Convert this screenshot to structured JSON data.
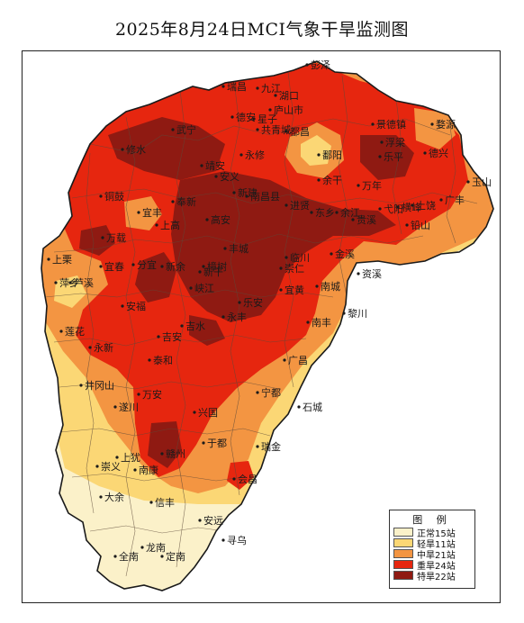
{
  "title": "2025年8月24日MCI气象干旱监测图",
  "colors": {
    "normal": "#fbf1c9",
    "light": "#fbd775",
    "moderate": "#f39542",
    "severe": "#e6260f",
    "extreme": "#8f1a12",
    "border": "#1a1a1a"
  },
  "legend": {
    "title": "图 例",
    "items": [
      {
        "label": "正常15站",
        "color": "#fbf1c9"
      },
      {
        "label": "轻旱11站",
        "color": "#fbd775"
      },
      {
        "label": "中旱21站",
        "color": "#f39542"
      },
      {
        "label": "重旱24站",
        "color": "#e6260f"
      },
      {
        "label": "特旱22站",
        "color": "#8f1a12"
      }
    ]
  },
  "cities": [
    {
      "name": "彭泽"
    },
    {
      "name": "瑞昌"
    },
    {
      "name": "九江"
    },
    {
      "name": "庐山市"
    },
    {
      "name": "武宁"
    },
    {
      "name": "德安"
    },
    {
      "name": "湖口"
    },
    {
      "name": "都昌"
    },
    {
      "name": "婺源"
    },
    {
      "name": "修水"
    },
    {
      "name": "共青城"
    },
    {
      "name": "星子"
    },
    {
      "name": "鄱阳"
    },
    {
      "name": "景德镇"
    },
    {
      "name": "乐平"
    },
    {
      "name": "浮梁"
    },
    {
      "name": "铜鼓"
    },
    {
      "name": "靖安"
    },
    {
      "name": "安义"
    },
    {
      "name": "永修"
    },
    {
      "name": "新建"
    },
    {
      "name": "南昌县"
    },
    {
      "name": "余干"
    },
    {
      "name": "万年"
    },
    {
      "name": "德兴"
    },
    {
      "name": "玉山"
    },
    {
      "name": "广丰"
    },
    {
      "name": "上饶"
    },
    {
      "name": "宜丰"
    },
    {
      "name": "奉新"
    },
    {
      "name": "进贤"
    },
    {
      "name": "东乡"
    },
    {
      "name": "余江"
    },
    {
      "name": "贵溪"
    },
    {
      "name": "弋阳"
    },
    {
      "name": "横峰"
    },
    {
      "name": "铅山"
    },
    {
      "name": "万载"
    },
    {
      "name": "上高"
    },
    {
      "name": "高安"
    },
    {
      "name": "丰城"
    },
    {
      "name": "临川"
    },
    {
      "name": "金溪"
    },
    {
      "name": "资溪"
    },
    {
      "name": "上栗"
    },
    {
      "name": "宜春"
    },
    {
      "name": "分宜"
    },
    {
      "name": "新余"
    },
    {
      "name": "樟树"
    },
    {
      "name": "崇仁"
    },
    {
      "name": "南城"
    },
    {
      "name": "萍乡"
    },
    {
      "name": "芦溪"
    },
    {
      "name": "安福"
    },
    {
      "name": "峡江"
    },
    {
      "name": "新干"
    },
    {
      "name": "乐安"
    },
    {
      "name": "宜黄"
    },
    {
      "name": "南丰"
    },
    {
      "name": "黎川"
    },
    {
      "name": "莲花"
    },
    {
      "name": "永新"
    },
    {
      "name": "吉安"
    },
    {
      "name": "吉水"
    },
    {
      "name": "永丰"
    },
    {
      "name": "泰和"
    },
    {
      "name": "广昌"
    },
    {
      "name": "井冈山"
    },
    {
      "name": "万安"
    },
    {
      "name": "宁都"
    },
    {
      "name": "石城"
    },
    {
      "name": "遂川"
    },
    {
      "name": "兴国"
    },
    {
      "name": "于都"
    },
    {
      "name": "瑞金"
    },
    {
      "name": "上犹"
    },
    {
      "name": "赣州"
    },
    {
      "name": "崇义"
    },
    {
      "name": "南康"
    },
    {
      "name": "会昌"
    },
    {
      "name": "大余"
    },
    {
      "name": "信丰"
    },
    {
      "name": "安远"
    },
    {
      "name": "寻乌"
    },
    {
      "name": "龙南"
    },
    {
      "name": "定南"
    },
    {
      "name": "全南"
    }
  ]
}
